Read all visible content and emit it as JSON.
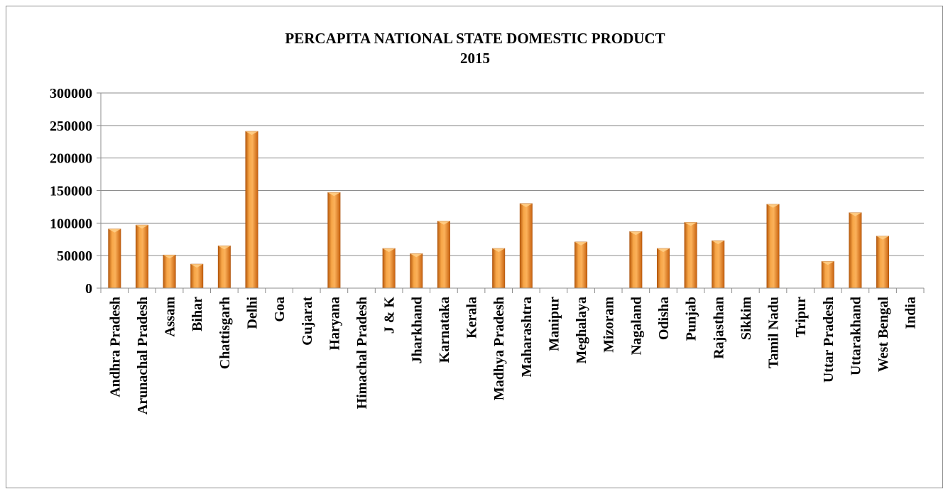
{
  "chart_data": {
    "type": "bar",
    "title": "PERCAPITA  NATIONAL STATE DOMESTIC PRODUCT",
    "subtitle": "2015",
    "xlabel": "",
    "ylabel": "",
    "ylim": [
      0,
      300000
    ],
    "yticks": [
      0,
      50000,
      100000,
      150000,
      200000,
      250000,
      300000
    ],
    "grid": true,
    "legend": "none",
    "bar_color": "#f08a24",
    "categories": [
      "Andhra Pradesh",
      "Arunachal Pradesh",
      "Assam",
      "Bihar",
      "Chattisgarh",
      "Delhi",
      "Goa",
      "Gujarat",
      "Haryana",
      "Himachal Pradesh",
      "J & K",
      "Jharkhand",
      "Karnataka",
      "Kerala",
      "Madhya Pradesh",
      "Maharashtra",
      "Manipur",
      "Meghalaya",
      "Mizoram",
      "Nagaland",
      "Odisha",
      "Punjab",
      "Rajasthan",
      "Sikkim",
      "Tamil Nadu",
      "Tripur",
      "Uttar Pradesh",
      "Uttarakhand",
      "West Bengal",
      "India"
    ],
    "values": [
      91000,
      97000,
      51000,
      37000,
      65000,
      241000,
      null,
      null,
      147000,
      null,
      61000,
      53000,
      103000,
      null,
      61000,
      130000,
      null,
      71000,
      null,
      87000,
      61000,
      101000,
      73000,
      null,
      129000,
      null,
      41000,
      116000,
      80000,
      null
    ]
  }
}
